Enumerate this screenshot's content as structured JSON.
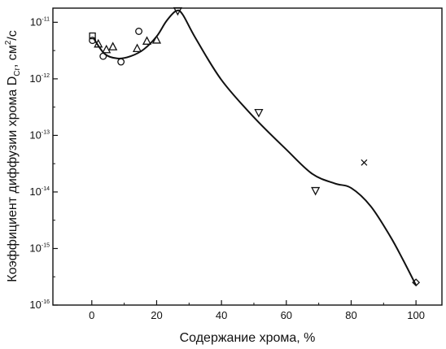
{
  "chart_data": {
    "type": "scatter",
    "xlabel": "Содержание хрома, %",
    "ylabel_main": "Коэффициент диффузии хрома D",
    "ylabel_sub": "Cr",
    "ylabel_tail": ", см",
    "ylabel_sup": "2",
    "ylabel_end": "/с",
    "x_ticks": [
      "0",
      "20",
      "40",
      "60",
      "80",
      "100"
    ],
    "y_ticks": [
      {
        "base": "10",
        "exp": "-11"
      },
      {
        "base": "10",
        "exp": "-12"
      },
      {
        "base": "10",
        "exp": "-13"
      },
      {
        "base": "10",
        "exp": "-14"
      },
      {
        "base": "10",
        "exp": "-15"
      },
      {
        "base": "10",
        "exp": "-16"
      }
    ],
    "xlim": [
      -12,
      108
    ],
    "ylim_log10": [
      -16,
      -10.75
    ],
    "y_scale": "log",
    "series": [
      {
        "marker": "square",
        "points": [
          [
            0.2,
            -11.24
          ]
        ]
      },
      {
        "marker": "circle",
        "points": [
          [
            0.2,
            -11.32
          ],
          [
            3.5,
            -11.6
          ],
          [
            9,
            -11.7
          ],
          [
            14.5,
            -11.16
          ]
        ]
      },
      {
        "marker": "triangle-up",
        "points": [
          [
            2,
            -11.38
          ],
          [
            4.5,
            -11.48
          ],
          [
            6.5,
            -11.43
          ],
          [
            14,
            -11.46
          ],
          [
            17,
            -11.33
          ],
          [
            20,
            -11.31
          ]
        ]
      },
      {
        "marker": "triangle-down",
        "points": [
          [
            26.5,
            -10.8
          ],
          [
            51.5,
            -12.6
          ],
          [
            69,
            -13.98
          ]
        ]
      },
      {
        "marker": "cross",
        "points": [
          [
            84,
            -13.48
          ]
        ]
      },
      {
        "marker": "diamond",
        "points": [
          [
            100,
            -15.6
          ]
        ]
      }
    ],
    "fit_curve": [
      [
        0.5,
        -11.28
      ],
      [
        4,
        -11.56
      ],
      [
        8,
        -11.64
      ],
      [
        12,
        -11.6
      ],
      [
        16,
        -11.48
      ],
      [
        20,
        -11.25
      ],
      [
        23,
        -10.98
      ],
      [
        26,
        -10.8
      ],
      [
        28,
        -10.86
      ],
      [
        32,
        -11.28
      ],
      [
        40,
        -12.02
      ],
      [
        50,
        -12.68
      ],
      [
        60,
        -13.25
      ],
      [
        68,
        -13.68
      ],
      [
        75,
        -13.85
      ],
      [
        80,
        -13.93
      ],
      [
        86,
        -14.25
      ],
      [
        92,
        -14.78
      ],
      [
        96,
        -15.2
      ],
      [
        100,
        -15.65
      ]
    ]
  }
}
